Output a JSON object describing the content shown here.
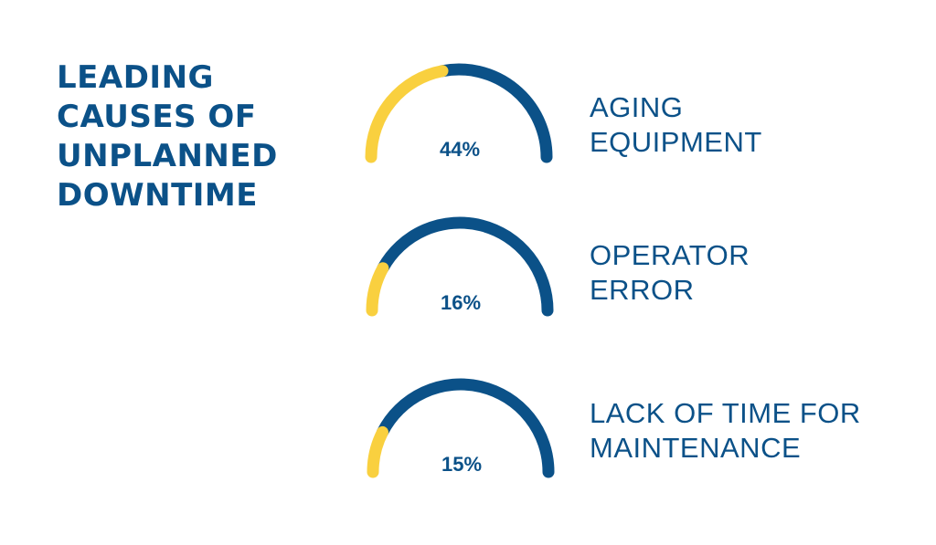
{
  "title_lines": [
    "LEADING",
    "CAUSES OF",
    "UNPLANNED",
    "DOWNTIME"
  ],
  "colors": {
    "accent": "#f9d03f",
    "brand": "#0b5188",
    "background": "#ffffff"
  },
  "chart_data": {
    "type": "gauge",
    "title": "LEADING CAUSES OF UNPLANNED DOWNTIME",
    "unit": "%",
    "range": [
      0,
      100
    ],
    "items": [
      {
        "label_lines": [
          "AGING",
          "EQUIPMENT"
        ],
        "value": 44,
        "value_label": "44%"
      },
      {
        "label_lines": [
          "OPERATOR",
          "ERROR"
        ],
        "value": 16,
        "value_label": "16%"
      },
      {
        "label_lines": [
          "LACK OF TIME FOR",
          "MAINTENANCE"
        ],
        "value": 15,
        "value_label": "15%"
      }
    ]
  }
}
